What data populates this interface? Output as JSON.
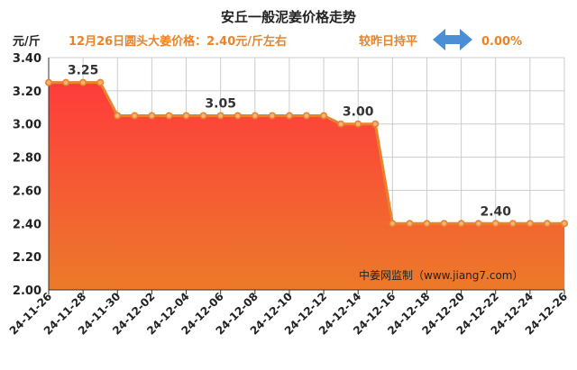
{
  "chart_data": {
    "type": "area",
    "title": "安丘一般泥姜价格走势",
    "info_text": "12月26日圆头大姜价格：2.40元/斤左右",
    "compare_text": "较昨日持平",
    "change_text": "0.00%",
    "ylabel": "元/斤",
    "watermark": "中姜网监制（www.jiang7.com）",
    "ylim": [
      2.0,
      3.4
    ],
    "yticks": [
      "2.00",
      "2.20",
      "2.40",
      "2.60",
      "2.80",
      "3.00",
      "3.20",
      "3.40"
    ],
    "xtick_labels": [
      "24-11-26",
      "24-11-28",
      "24-11-30",
      "24-12-02",
      "24-12-04",
      "24-12-06",
      "24-12-08",
      "24-12-10",
      "24-12-12",
      "24-12-14",
      "24-12-16",
      "24-12-18",
      "24-12-20",
      "24-12-22",
      "24-12-24",
      "24-12-26"
    ],
    "x": [
      "24-11-26",
      "24-11-27",
      "24-11-28",
      "24-11-29",
      "24-11-30",
      "24-12-01",
      "24-12-02",
      "24-12-03",
      "24-12-04",
      "24-12-05",
      "24-12-06",
      "24-12-07",
      "24-12-08",
      "24-12-09",
      "24-12-10",
      "24-12-11",
      "24-12-12",
      "24-12-13",
      "24-12-14",
      "24-12-15",
      "24-12-16",
      "24-12-17",
      "24-12-18",
      "24-12-19",
      "24-12-20",
      "24-12-21",
      "24-12-22",
      "24-12-23",
      "24-12-24",
      "24-12-25",
      "24-12-26"
    ],
    "values": [
      3.25,
      3.25,
      3.25,
      3.25,
      3.05,
      3.05,
      3.05,
      3.05,
      3.05,
      3.05,
      3.05,
      3.05,
      3.05,
      3.05,
      3.05,
      3.05,
      3.05,
      3.0,
      3.0,
      3.0,
      2.4,
      2.4,
      2.4,
      2.4,
      2.4,
      2.4,
      2.4,
      2.4,
      2.4,
      2.4,
      2.4
    ],
    "data_labels": [
      {
        "index": 2,
        "text": "3.25"
      },
      {
        "index": 10,
        "text": "3.05"
      },
      {
        "index": 18,
        "text": "3.00"
      },
      {
        "index": 26,
        "text": "2.40"
      }
    ],
    "colors": {
      "line": "#e8832a",
      "area_top": "#ff3b3b",
      "area_bottom": "#ec7a2a",
      "marker_fill": "#f6b27a",
      "arrow": "#4a8fd6",
      "grid": "#cccccc"
    }
  }
}
